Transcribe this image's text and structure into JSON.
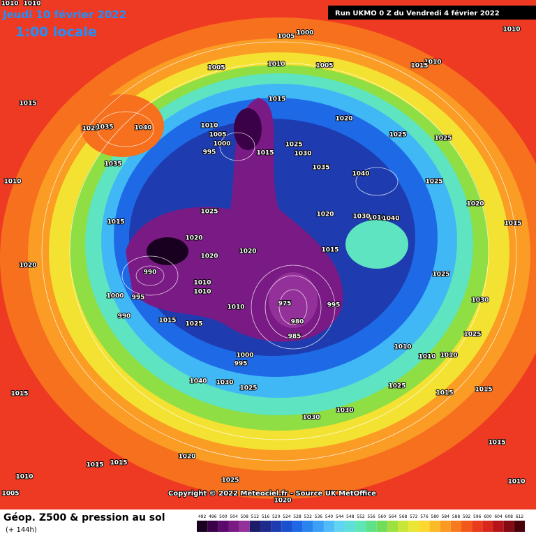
{
  "header": {
    "date": "Jeudi 10 février 2022",
    "time": "1:00 locale",
    "run": "Run UKMO 0 Z du Vendredi 4 février 2022"
  },
  "copyright": "Copyright © 2022 Meteociel.fr - Source UK MetOffice",
  "legend": {
    "title": "Géop. Z500 & pression au sol",
    "subtitle": "(+ 144h)",
    "scale": [
      492,
      496,
      500,
      504,
      508,
      512,
      516,
      520,
      524,
      528,
      532,
      536,
      540,
      544,
      548,
      552,
      556,
      560,
      564,
      568,
      572,
      576,
      580,
      584,
      588,
      592,
      596,
      600,
      604,
      608,
      612
    ],
    "colors": [
      "#1a0020",
      "#3a0048",
      "#5a0a6a",
      "#7a1a84",
      "#94309a",
      "#1c1c6a",
      "#1e2a8c",
      "#1e3cb0",
      "#1a50d0",
      "#1e68e6",
      "#2a84f0",
      "#3ca0f6",
      "#50bcf8",
      "#60d4f0",
      "#5ee0d8",
      "#5ee6b4",
      "#60e088",
      "#70dc5a",
      "#9ee040",
      "#c8e638",
      "#eae634",
      "#fcd830",
      "#fcba28",
      "#fa9a22",
      "#f67a1e",
      "#f2581c",
      "#ea3c1c",
      "#d8281c",
      "#b4141a",
      "#840a14",
      "#4a0008"
    ]
  },
  "isobar_labels": [
    1010,
    1010,
    1015,
    1020,
    1035,
    1040,
    1035,
    1010,
    1015,
    1020,
    1005,
    1000,
    1005,
    1010,
    1005,
    1015,
    1020,
    1010,
    1005,
    1000,
    995,
    1015,
    1025,
    1030,
    1035,
    1040,
    1025,
    1025,
    1025,
    1020,
    1010,
    1040,
    1030,
    1020,
    1015,
    1025,
    1020,
    990,
    1000,
    995,
    990,
    1015,
    1025,
    975,
    980,
    985,
    995,
    1010,
    1000,
    995,
    1040,
    1030,
    1025,
    1010,
    1010,
    1010,
    1025,
    1030,
    1030,
    1015,
    1015,
    1015,
    1015,
    1015,
    1020,
    1010,
    1025,
    1005,
    1020,
    1010,
    1015,
    1030,
    1025,
    1025,
    1015,
    1010,
    1010,
    1015,
    1020,
    1020,
    1010,
    1010
  ]
}
